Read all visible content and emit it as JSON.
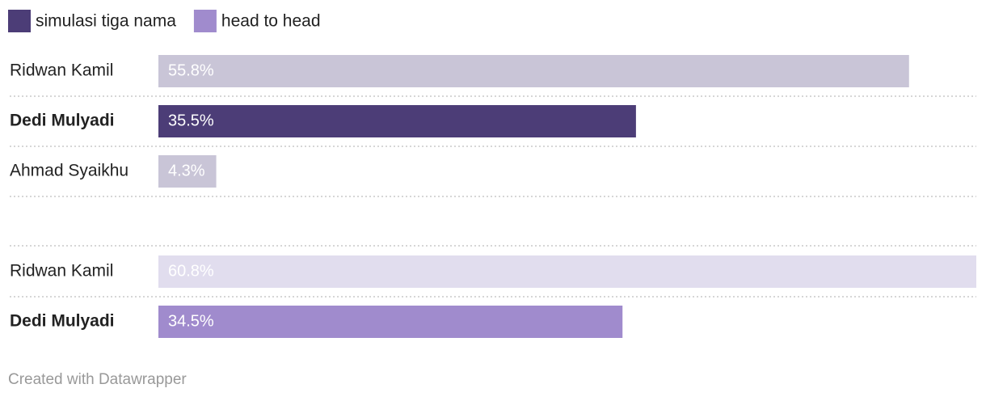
{
  "chart_data": {
    "type": "grouped-bar",
    "series": [
      {
        "name": "simulasi tiga nama",
        "color": "#4c3d77",
        "muted_color": "#c9c5d7",
        "categories": [
          "Ridwan Kamil",
          "Dedi Mulyadi",
          "Ahmad Syaikhu"
        ],
        "values": [
          55.8,
          35.5,
          4.3
        ],
        "value_labels": [
          "55.8%",
          "35.5%",
          "4.3%"
        ],
        "highlight": "Dedi Mulyadi"
      },
      {
        "name": "head to head",
        "color": "#a08bcd",
        "muted_color": "#e1ddee",
        "categories": [
          "Ridwan Kamil",
          "Dedi Mulyadi"
        ],
        "values": [
          60.8,
          34.5
        ],
        "value_labels": [
          "60.8%",
          "34.5%"
        ],
        "highlight": "Dedi Mulyadi"
      }
    ],
    "credit": "Created with Datawrapper"
  }
}
